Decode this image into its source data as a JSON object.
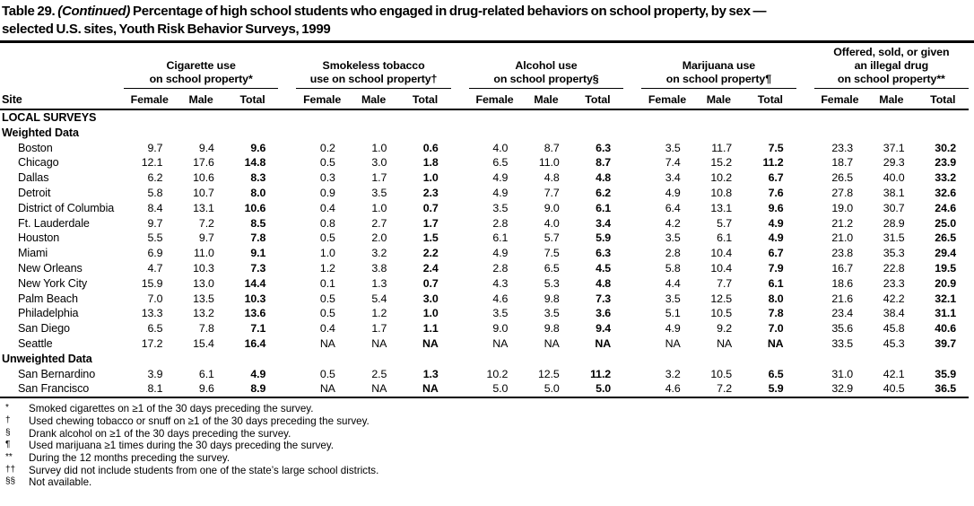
{
  "title": {
    "prefix": "Table 29.",
    "continued": "(Continued)",
    "line1_rest": "Percentage of high school students who engaged in drug-related behaviors on school property, by sex —",
    "line2": "selected U.S. sites, Youth Risk Behavior Surveys, 1999"
  },
  "table": {
    "site_header": "Site",
    "col_subheaders": [
      "Female",
      "Male",
      "Total"
    ],
    "groups": [
      {
        "name": "cigarette-use",
        "lines": [
          "Cigarette use",
          "on school property*"
        ]
      },
      {
        "name": "smokeless-tobacco-use",
        "lines": [
          "Smokeless tobacco",
          "use on school property†"
        ]
      },
      {
        "name": "alcohol-use",
        "lines": [
          "Alcohol use",
          "on school property§"
        ]
      },
      {
        "name": "marijuana-use",
        "lines": [
          "Marijuana use",
          "on school property¶"
        ]
      },
      {
        "name": "offered-sold-given-illegal-drug",
        "lines": [
          "Offered, sold, or given",
          "an illegal drug",
          "on school property**"
        ]
      }
    ],
    "rows": [
      {
        "type": "heading",
        "label": "LOCAL SURVEYS"
      },
      {
        "type": "subheading",
        "label": "Weighted Data"
      },
      {
        "type": "data",
        "site": "Boston",
        "values": [
          "9.7",
          "9.4",
          "9.6",
          "0.2",
          "1.0",
          "0.6",
          "4.0",
          "8.7",
          "6.3",
          "3.5",
          "11.7",
          "7.5",
          "23.3",
          "37.1",
          "30.2"
        ]
      },
      {
        "type": "data",
        "site": "Chicago",
        "values": [
          "12.1",
          "17.6",
          "14.8",
          "0.5",
          "3.0",
          "1.8",
          "6.5",
          "11.0",
          "8.7",
          "7.4",
          "15.2",
          "11.2",
          "18.7",
          "29.3",
          "23.9"
        ]
      },
      {
        "type": "data",
        "site": "Dallas",
        "values": [
          "6.2",
          "10.6",
          "8.3",
          "0.3",
          "1.7",
          "1.0",
          "4.9",
          "4.8",
          "4.8",
          "3.4",
          "10.2",
          "6.7",
          "26.5",
          "40.0",
          "33.2"
        ]
      },
      {
        "type": "data",
        "site": "Detroit",
        "values": [
          "5.8",
          "10.7",
          "8.0",
          "0.9",
          "3.5",
          "2.3",
          "4.9",
          "7.7",
          "6.2",
          "4.9",
          "10.8",
          "7.6",
          "27.8",
          "38.1",
          "32.6"
        ]
      },
      {
        "type": "data",
        "site": "District of Columbia",
        "values": [
          "8.4",
          "13.1",
          "10.6",
          "0.4",
          "1.0",
          "0.7",
          "3.5",
          "9.0",
          "6.1",
          "6.4",
          "13.1",
          "9.6",
          "19.0",
          "30.7",
          "24.6"
        ]
      },
      {
        "type": "data",
        "site": "Ft. Lauderdale",
        "values": [
          "9.7",
          "7.2",
          "8.5",
          "0.8",
          "2.7",
          "1.7",
          "2.8",
          "4.0",
          "3.4",
          "4.2",
          "5.7",
          "4.9",
          "21.2",
          "28.9",
          "25.0"
        ]
      },
      {
        "type": "data",
        "site": "Houston",
        "values": [
          "5.5",
          "9.7",
          "7.8",
          "0.5",
          "2.0",
          "1.5",
          "6.1",
          "5.7",
          "5.9",
          "3.5",
          "6.1",
          "4.9",
          "21.0",
          "31.5",
          "26.5"
        ]
      },
      {
        "type": "data",
        "site": "Miami",
        "values": [
          "6.9",
          "11.0",
          "9.1",
          "1.0",
          "3.2",
          "2.2",
          "4.9",
          "7.5",
          "6.3",
          "2.8",
          "10.4",
          "6.7",
          "23.8",
          "35.3",
          "29.4"
        ]
      },
      {
        "type": "data",
        "site": "New Orleans",
        "values": [
          "4.7",
          "10.3",
          "7.3",
          "1.2",
          "3.8",
          "2.4",
          "2.8",
          "6.5",
          "4.5",
          "5.8",
          "10.4",
          "7.9",
          "16.7",
          "22.8",
          "19.5"
        ]
      },
      {
        "type": "data",
        "site": "New York City",
        "values": [
          "15.9",
          "13.0",
          "14.4",
          "0.1",
          "1.3",
          "0.7",
          "4.3",
          "5.3",
          "4.8",
          "4.4",
          "7.7",
          "6.1",
          "18.6",
          "23.3",
          "20.9"
        ]
      },
      {
        "type": "data",
        "site": "Palm Beach",
        "values": [
          "7.0",
          "13.5",
          "10.3",
          "0.5",
          "5.4",
          "3.0",
          "4.6",
          "9.8",
          "7.3",
          "3.5",
          "12.5",
          "8.0",
          "21.6",
          "42.2",
          "32.1"
        ]
      },
      {
        "type": "data",
        "site": "Philadelphia",
        "values": [
          "13.3",
          "13.2",
          "13.6",
          "0.5",
          "1.2",
          "1.0",
          "3.5",
          "3.5",
          "3.6",
          "5.1",
          "10.5",
          "7.8",
          "23.4",
          "38.4",
          "31.1"
        ]
      },
      {
        "type": "data",
        "site": "San Diego",
        "values": [
          "6.5",
          "7.8",
          "7.1",
          "0.4",
          "1.7",
          "1.1",
          "9.0",
          "9.8",
          "9.4",
          "4.9",
          "9.2",
          "7.0",
          "35.6",
          "45.8",
          "40.6"
        ]
      },
      {
        "type": "data",
        "site": "Seattle",
        "values": [
          "17.2",
          "15.4",
          "16.4",
          "NA",
          "NA",
          "NA",
          "NA",
          "NA",
          "NA",
          "NA",
          "NA",
          "NA",
          "33.5",
          "45.3",
          "39.7"
        ]
      },
      {
        "type": "subheading",
        "label": "Unweighted Data"
      },
      {
        "type": "data",
        "site": "San Bernardino",
        "values": [
          "3.9",
          "6.1",
          "4.9",
          "0.5",
          "2.5",
          "1.3",
          "10.2",
          "12.5",
          "11.2",
          "3.2",
          "10.5",
          "6.5",
          "31.0",
          "42.1",
          "35.9"
        ]
      },
      {
        "type": "data",
        "site": "San Francisco",
        "values": [
          "8.1",
          "9.6",
          "8.9",
          "NA",
          "NA",
          "NA",
          "5.0",
          "5.0",
          "5.0",
          "4.6",
          "7.2",
          "5.9",
          "32.9",
          "40.5",
          "36.5"
        ]
      }
    ]
  },
  "footnotes": [
    {
      "symbol": "*",
      "text": "Smoked cigarettes on ≥1 of the 30 days preceding the survey."
    },
    {
      "symbol": "†",
      "text": "Used chewing tobacco or snuff on ≥1 of the 30 days preceding the survey."
    },
    {
      "symbol": "§",
      "text": "Drank alcohol on ≥1 of the 30 days preceding the survey."
    },
    {
      "symbol": "¶",
      "text": "Used marijuana ≥1 times during the 30 days preceding the survey."
    },
    {
      "symbol": "**",
      "text": "During the 12 months preceding the survey."
    },
    {
      "symbol": "††",
      "text": "Survey did not include students from one of the state’s large school districts."
    },
    {
      "symbol": "§§",
      "text": "Not available."
    }
  ]
}
